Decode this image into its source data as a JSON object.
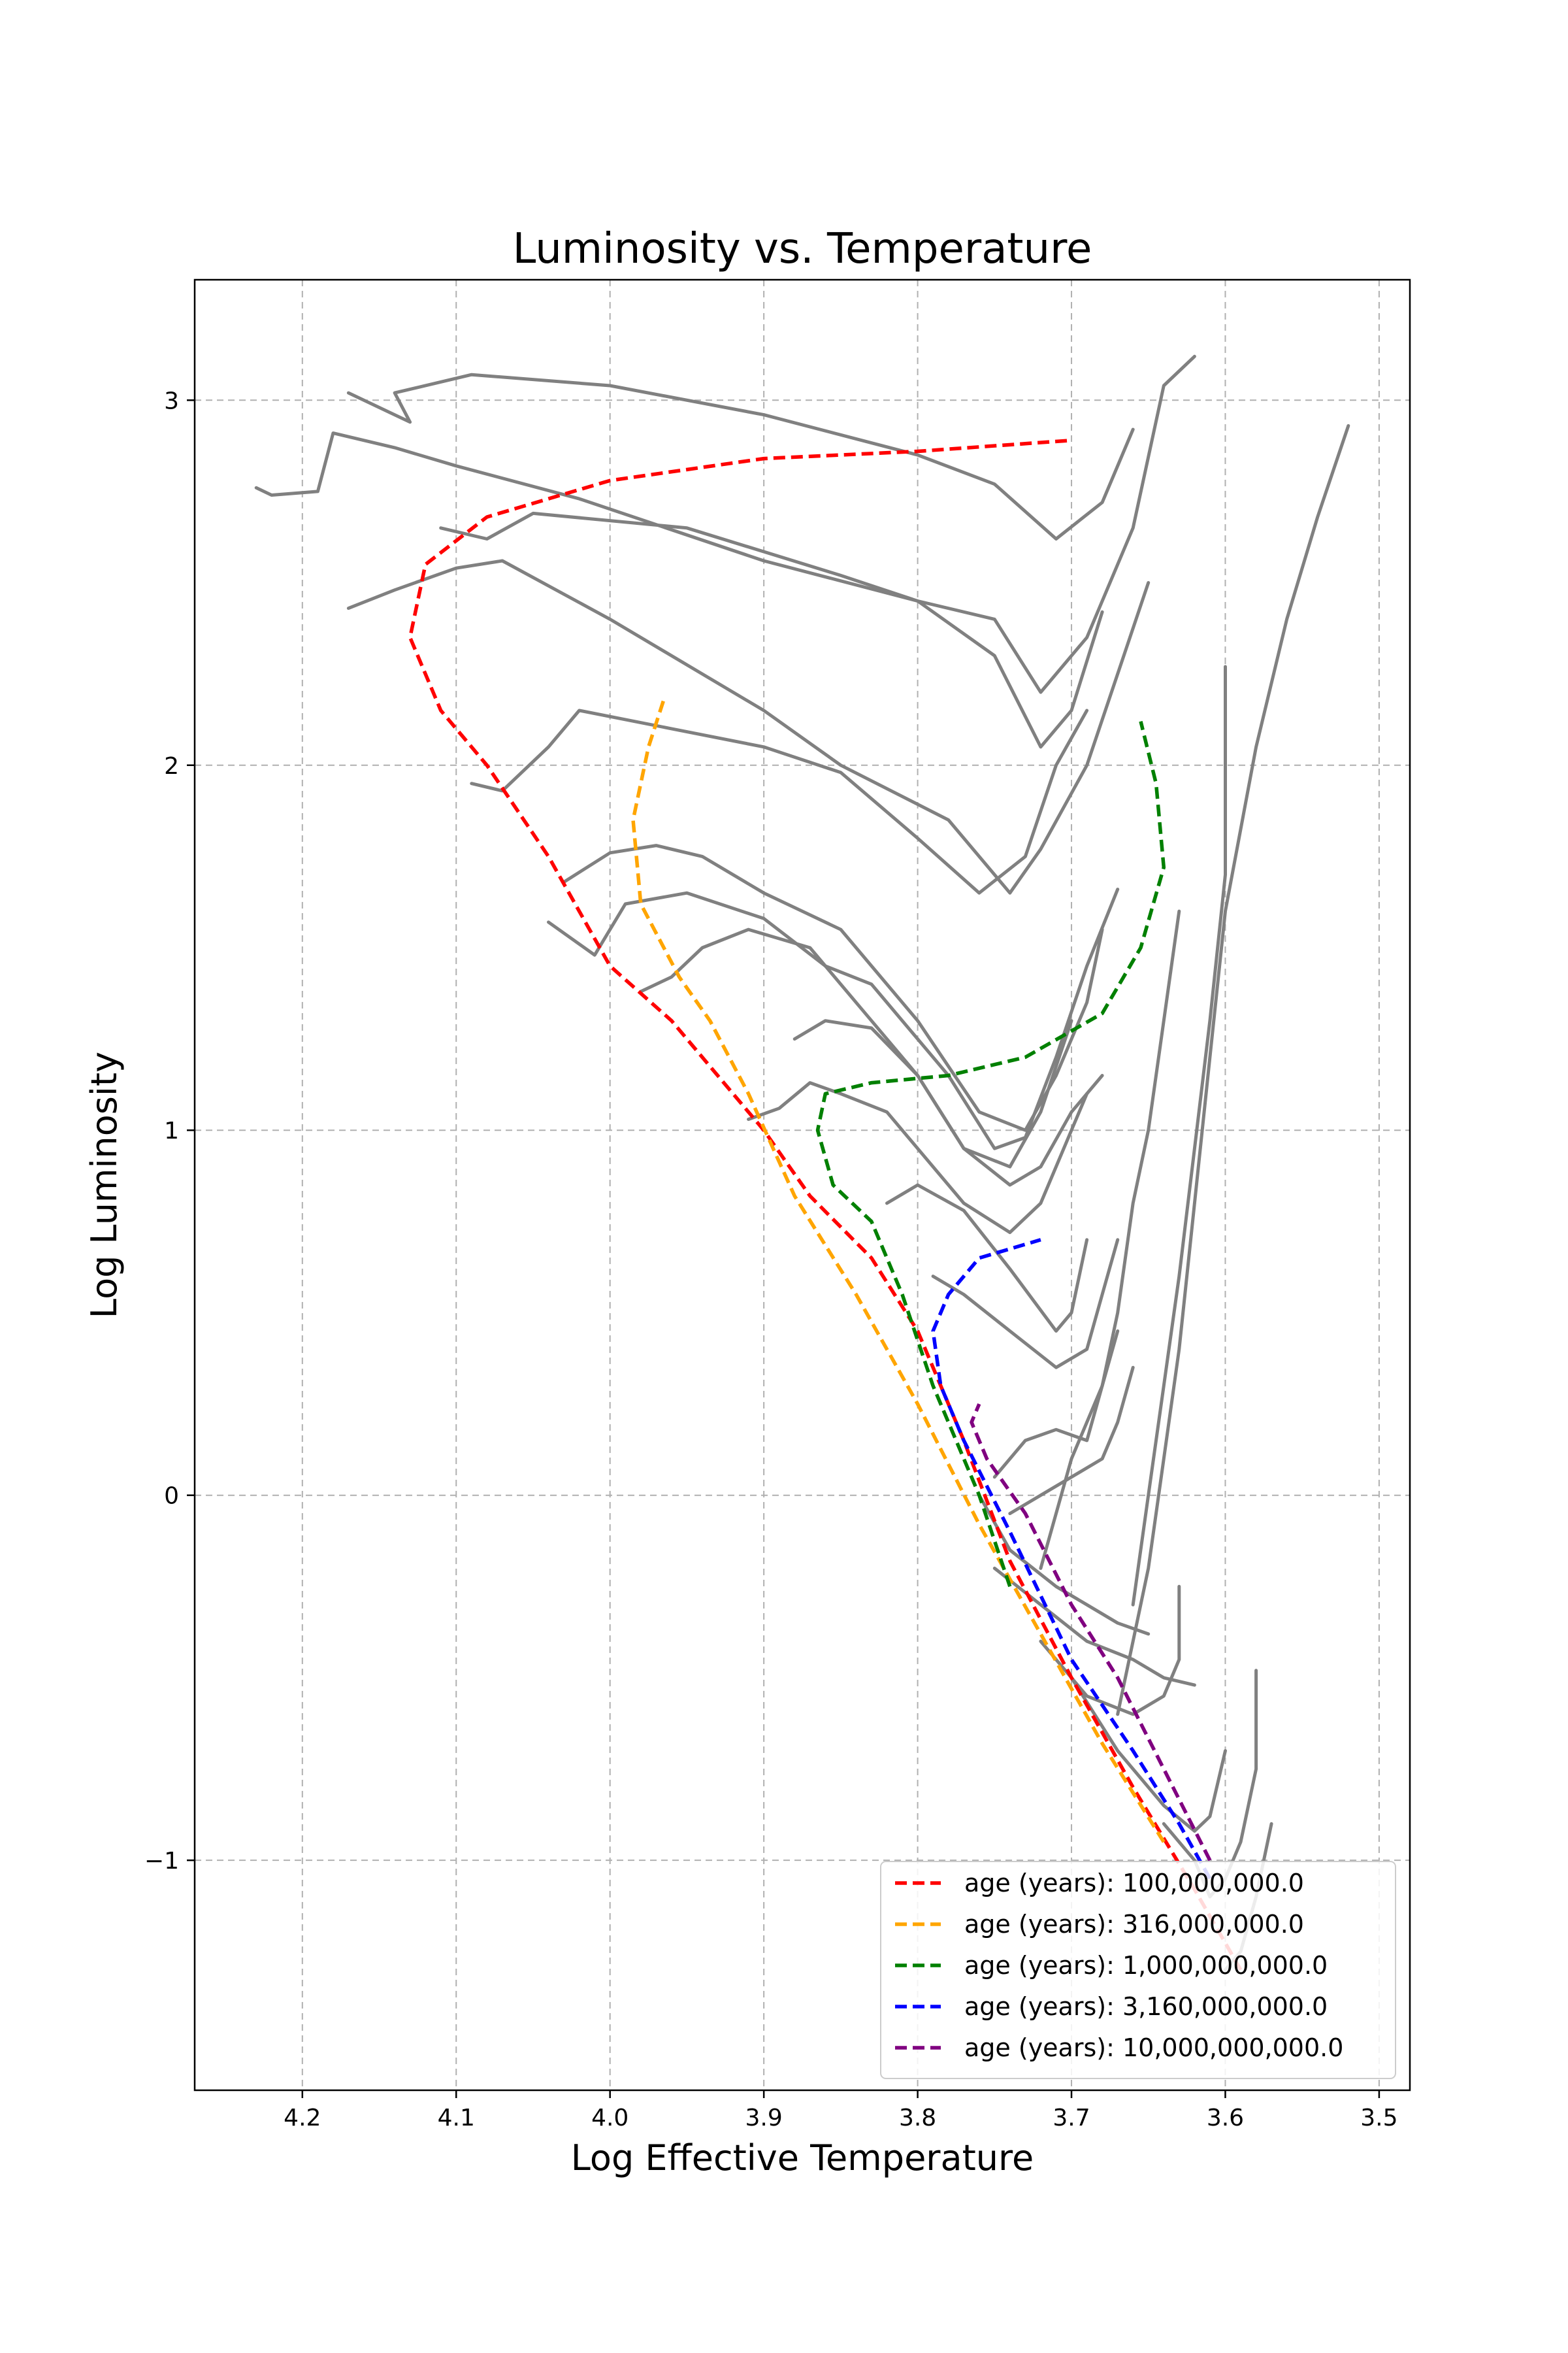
{
  "chart_data": {
    "type": "line",
    "title": "Luminosity vs. Temperature",
    "xlabel": "Log Effective Temperature",
    "ylabel": "Log Luminosity",
    "xlim": [
      4.27,
      3.48
    ],
    "ylim": [
      -1.63,
      3.33
    ],
    "x_inverted": true,
    "grid": true,
    "legend_position": "lower-right",
    "xticks": [
      4.2,
      4.1,
      4.0,
      3.9,
      3.8,
      3.7,
      3.6,
      3.5
    ],
    "xtick_labels": [
      "4.2",
      "4.1",
      "4.0",
      "3.9",
      "3.8",
      "3.7",
      "3.6",
      "3.5"
    ],
    "yticks": [
      3,
      2,
      1,
      0,
      -1
    ],
    "ytick_labels": [
      "3",
      "2",
      "1",
      "0",
      "−1"
    ],
    "track_color": "#808080",
    "tracks": [
      [
        [
          4.23,
          2.76
        ],
        [
          4.22,
          2.74
        ],
        [
          4.19,
          2.75
        ],
        [
          4.18,
          2.91
        ],
        [
          4.14,
          2.87
        ],
        [
          4.1,
          2.82
        ],
        [
          4.02,
          2.73
        ],
        [
          3.9,
          2.56
        ],
        [
          3.8,
          2.45
        ],
        [
          3.75,
          2.4
        ],
        [
          3.72,
          2.2
        ],
        [
          3.69,
          2.35
        ],
        [
          3.66,
          2.65
        ],
        [
          3.64,
          3.04
        ],
        [
          3.62,
          3.12
        ]
      ],
      [
        [
          4.17,
          3.02
        ],
        [
          4.13,
          2.94
        ],
        [
          4.14,
          3.02
        ],
        [
          4.09,
          3.07
        ],
        [
          4.0,
          3.04
        ],
        [
          3.9,
          2.96
        ],
        [
          3.8,
          2.85
        ],
        [
          3.75,
          2.77
        ],
        [
          3.71,
          2.62
        ],
        [
          3.68,
          2.72
        ],
        [
          3.66,
          2.92
        ]
      ],
      [
        [
          4.17,
          2.43
        ],
        [
          4.14,
          2.48
        ],
        [
          4.1,
          2.54
        ],
        [
          4.07,
          2.56
        ],
        [
          4.0,
          2.4
        ],
        [
          3.9,
          2.15
        ],
        [
          3.85,
          2.0
        ],
        [
          3.78,
          1.85
        ],
        [
          3.74,
          1.65
        ],
        [
          3.72,
          1.77
        ],
        [
          3.69,
          2.0
        ],
        [
          3.67,
          2.25
        ],
        [
          3.65,
          2.5
        ]
      ],
      [
        [
          4.11,
          2.65
        ],
        [
          4.08,
          2.62
        ],
        [
          4.05,
          2.69
        ],
        [
          3.95,
          2.65
        ],
        [
          3.85,
          2.52
        ],
        [
          3.8,
          2.45
        ],
        [
          3.75,
          2.3
        ],
        [
          3.72,
          2.05
        ],
        [
          3.7,
          2.15
        ],
        [
          3.68,
          2.42
        ]
      ],
      [
        [
          4.09,
          1.95
        ],
        [
          4.07,
          1.93
        ],
        [
          4.04,
          2.05
        ],
        [
          4.02,
          2.15
        ],
        [
          3.96,
          2.1
        ],
        [
          3.9,
          2.05
        ],
        [
          3.85,
          1.98
        ],
        [
          3.8,
          1.8
        ],
        [
          3.76,
          1.65
        ],
        [
          3.73,
          1.75
        ],
        [
          3.71,
          2.0
        ],
        [
          3.69,
          2.15
        ]
      ],
      [
        [
          4.04,
          1.57
        ],
        [
          4.01,
          1.48
        ],
        [
          3.99,
          1.62
        ],
        [
          3.95,
          1.65
        ],
        [
          3.9,
          1.58
        ],
        [
          3.86,
          1.45
        ],
        [
          3.83,
          1.4
        ],
        [
          3.78,
          1.15
        ],
        [
          3.75,
          0.95
        ],
        [
          3.73,
          0.98
        ],
        [
          3.71,
          1.2
        ],
        [
          3.69,
          1.45
        ],
        [
          3.67,
          1.66
        ]
      ],
      [
        [
          4.03,
          1.68
        ],
        [
          4.0,
          1.76
        ],
        [
          3.97,
          1.78
        ],
        [
          3.94,
          1.75
        ],
        [
          3.9,
          1.65
        ],
        [
          3.85,
          1.55
        ],
        [
          3.8,
          1.3
        ],
        [
          3.76,
          1.05
        ],
        [
          3.73,
          1.0
        ],
        [
          3.71,
          1.15
        ],
        [
          3.69,
          1.35
        ],
        [
          3.68,
          1.55
        ]
      ],
      [
        [
          3.98,
          1.38
        ],
        [
          3.96,
          1.42
        ],
        [
          3.94,
          1.5
        ],
        [
          3.91,
          1.55
        ],
        [
          3.87,
          1.5
        ],
        [
          3.84,
          1.35
        ],
        [
          3.8,
          1.15
        ],
        [
          3.77,
          0.95
        ],
        [
          3.74,
          0.9
        ],
        [
          3.72,
          1.05
        ],
        [
          3.7,
          1.3
        ]
      ],
      [
        [
          3.91,
          1.03
        ],
        [
          3.89,
          1.06
        ],
        [
          3.87,
          1.13
        ],
        [
          3.85,
          1.1
        ],
        [
          3.82,
          1.05
        ],
        [
          3.8,
          0.95
        ],
        [
          3.77,
          0.8
        ],
        [
          3.74,
          0.72
        ],
        [
          3.72,
          0.8
        ],
        [
          3.7,
          1.0
        ],
        [
          3.69,
          1.1
        ]
      ],
      [
        [
          3.88,
          1.25
        ],
        [
          3.86,
          1.3
        ],
        [
          3.83,
          1.28
        ],
        [
          3.8,
          1.15
        ],
        [
          3.77,
          0.95
        ],
        [
          3.74,
          0.85
        ],
        [
          3.72,
          0.9
        ],
        [
          3.7,
          1.05
        ],
        [
          3.68,
          1.15
        ]
      ],
      [
        [
          3.82,
          0.8
        ],
        [
          3.8,
          0.85
        ],
        [
          3.77,
          0.78
        ],
        [
          3.74,
          0.62
        ],
        [
          3.71,
          0.45
        ],
        [
          3.7,
          0.5
        ],
        [
          3.69,
          0.7
        ]
      ],
      [
        [
          3.79,
          0.6
        ],
        [
          3.77,
          0.55
        ],
        [
          3.74,
          0.45
        ],
        [
          3.71,
          0.35
        ],
        [
          3.69,
          0.4
        ],
        [
          3.68,
          0.55
        ],
        [
          3.67,
          0.7
        ]
      ],
      [
        [
          3.75,
          0.05
        ],
        [
          3.73,
          0.15
        ],
        [
          3.71,
          0.18
        ],
        [
          3.69,
          0.15
        ],
        [
          3.68,
          0.3
        ],
        [
          3.67,
          0.45
        ]
      ],
      [
        [
          3.74,
          -0.05
        ],
        [
          3.72,
          0.0
        ],
        [
          3.7,
          0.05
        ],
        [
          3.68,
          0.1
        ],
        [
          3.67,
          0.2
        ],
        [
          3.66,
          0.35
        ]
      ],
      [
        [
          3.76,
          0.0
        ],
        [
          3.74,
          -0.15
        ],
        [
          3.71,
          -0.25
        ],
        [
          3.69,
          -0.3
        ],
        [
          3.67,
          -0.35
        ],
        [
          3.65,
          -0.38
        ]
      ],
      [
        [
          3.75,
          -0.2
        ],
        [
          3.72,
          -0.3
        ],
        [
          3.69,
          -0.4
        ],
        [
          3.66,
          -0.45
        ],
        [
          3.64,
          -0.5
        ],
        [
          3.62,
          -0.52
        ]
      ],
      [
        [
          3.72,
          -0.4
        ],
        [
          3.69,
          -0.55
        ],
        [
          3.66,
          -0.6
        ],
        [
          3.64,
          -0.55
        ],
        [
          3.63,
          -0.45
        ],
        [
          3.63,
          -0.25
        ]
      ],
      [
        [
          3.7,
          -0.5
        ],
        [
          3.67,
          -0.7
        ],
        [
          3.64,
          -0.85
        ],
        [
          3.62,
          -0.92
        ],
        [
          3.61,
          -0.88
        ],
        [
          3.6,
          -0.7
        ]
      ],
      [
        [
          3.64,
          -0.9
        ],
        [
          3.62,
          -1.0
        ],
        [
          3.61,
          -1.1
        ],
        [
          3.6,
          -1.05
        ],
        [
          3.59,
          -0.95
        ],
        [
          3.58,
          -0.75
        ],
        [
          3.58,
          -0.48
        ]
      ],
      [
        [
          3.6,
          -1.3
        ],
        [
          3.59,
          -1.25
        ],
        [
          3.58,
          -1.1
        ],
        [
          3.57,
          -0.9
        ]
      ],
      [
        [
          3.72,
          -0.2
        ],
        [
          3.71,
          -0.05
        ],
        [
          3.7,
          0.1
        ],
        [
          3.68,
          0.3
        ],
        [
          3.67,
          0.5
        ],
        [
          3.66,
          0.8
        ],
        [
          3.65,
          1.0
        ],
        [
          3.64,
          1.3
        ],
        [
          3.63,
          1.6
        ]
      ],
      [
        [
          3.67,
          -0.6
        ],
        [
          3.66,
          -0.4
        ],
        [
          3.65,
          -0.2
        ],
        [
          3.64,
          0.1
        ],
        [
          3.63,
          0.4
        ],
        [
          3.62,
          0.8
        ],
        [
          3.61,
          1.2
        ],
        [
          3.6,
          1.6
        ],
        [
          3.58,
          2.05
        ],
        [
          3.56,
          2.4
        ],
        [
          3.54,
          2.68
        ],
        [
          3.52,
          2.93
        ]
      ],
      [
        [
          3.66,
          -0.3
        ],
        [
          3.65,
          0.0
        ],
        [
          3.64,
          0.3
        ],
        [
          3.63,
          0.6
        ],
        [
          3.62,
          0.95
        ],
        [
          3.61,
          1.3
        ],
        [
          3.6,
          1.7
        ],
        [
          3.6,
          2.06
        ],
        [
          3.6,
          2.27
        ]
      ]
    ],
    "series": [
      {
        "name": "age (years): 100,000,000.0",
        "color": "#ff0000",
        "points": [
          [
            3.59,
            -1.3
          ],
          [
            3.62,
            -1.08
          ],
          [
            3.66,
            -0.8
          ],
          [
            3.7,
            -0.5
          ],
          [
            3.74,
            -0.18
          ],
          [
            3.77,
            0.15
          ],
          [
            3.8,
            0.45
          ],
          [
            3.83,
            0.65
          ],
          [
            3.87,
            0.82
          ],
          [
            3.9,
            1.0
          ],
          [
            3.93,
            1.15
          ],
          [
            3.96,
            1.3
          ],
          [
            4.0,
            1.45
          ],
          [
            4.04,
            1.75
          ],
          [
            4.08,
            2.0
          ],
          [
            4.11,
            2.15
          ],
          [
            4.13,
            2.35
          ],
          [
            4.12,
            2.55
          ],
          [
            4.08,
            2.68
          ],
          [
            4.0,
            2.78
          ],
          [
            3.9,
            2.84
          ],
          [
            3.8,
            2.86
          ],
          [
            3.7,
            2.89
          ]
        ]
      },
      {
        "name": "age (years): 316,000,000.0",
        "color": "#ffa500",
        "points": [
          [
            3.64,
            -0.95
          ],
          [
            3.68,
            -0.68
          ],
          [
            3.72,
            -0.38
          ],
          [
            3.76,
            -0.08
          ],
          [
            3.8,
            0.25
          ],
          [
            3.84,
            0.55
          ],
          [
            3.88,
            0.82
          ],
          [
            3.91,
            1.1
          ],
          [
            3.935,
            1.3
          ],
          [
            3.955,
            1.42
          ],
          [
            3.98,
            1.62
          ],
          [
            3.985,
            1.85
          ],
          [
            3.975,
            2.05
          ],
          [
            3.965,
            2.18
          ]
        ]
      },
      {
        "name": "age (years): 1,000,000,000.0",
        "color": "#008000",
        "points": [
          [
            3.74,
            -0.25
          ],
          [
            3.76,
            0.0
          ],
          [
            3.79,
            0.3
          ],
          [
            3.81,
            0.55
          ],
          [
            3.83,
            0.75
          ],
          [
            3.855,
            0.85
          ],
          [
            3.865,
            1.0
          ],
          [
            3.86,
            1.1
          ],
          [
            3.83,
            1.13
          ],
          [
            3.78,
            1.15
          ],
          [
            3.73,
            1.2
          ],
          [
            3.68,
            1.32
          ],
          [
            3.655,
            1.5
          ],
          [
            3.64,
            1.72
          ],
          [
            3.645,
            1.95
          ],
          [
            3.655,
            2.12
          ]
        ]
      },
      {
        "name": "age (years): 3,160,000,000.0",
        "color": "#0000ff",
        "points": [
          [
            3.61,
            -1.05
          ],
          [
            3.63,
            -0.9
          ],
          [
            3.66,
            -0.7
          ],
          [
            3.7,
            -0.45
          ],
          [
            3.74,
            -0.1
          ],
          [
            3.77,
            0.15
          ],
          [
            3.785,
            0.3
          ],
          [
            3.79,
            0.45
          ],
          [
            3.78,
            0.55
          ],
          [
            3.76,
            0.65
          ],
          [
            3.72,
            0.7
          ]
        ]
      },
      {
        "name": "age (years): 10,000,000,000.0",
        "color": "#800080",
        "points": [
          [
            3.61,
            -1.0
          ],
          [
            3.64,
            -0.75
          ],
          [
            3.67,
            -0.5
          ],
          [
            3.7,
            -0.3
          ],
          [
            3.73,
            -0.05
          ],
          [
            3.755,
            0.1
          ],
          [
            3.765,
            0.2
          ],
          [
            3.76,
            0.25
          ]
        ]
      }
    ]
  }
}
